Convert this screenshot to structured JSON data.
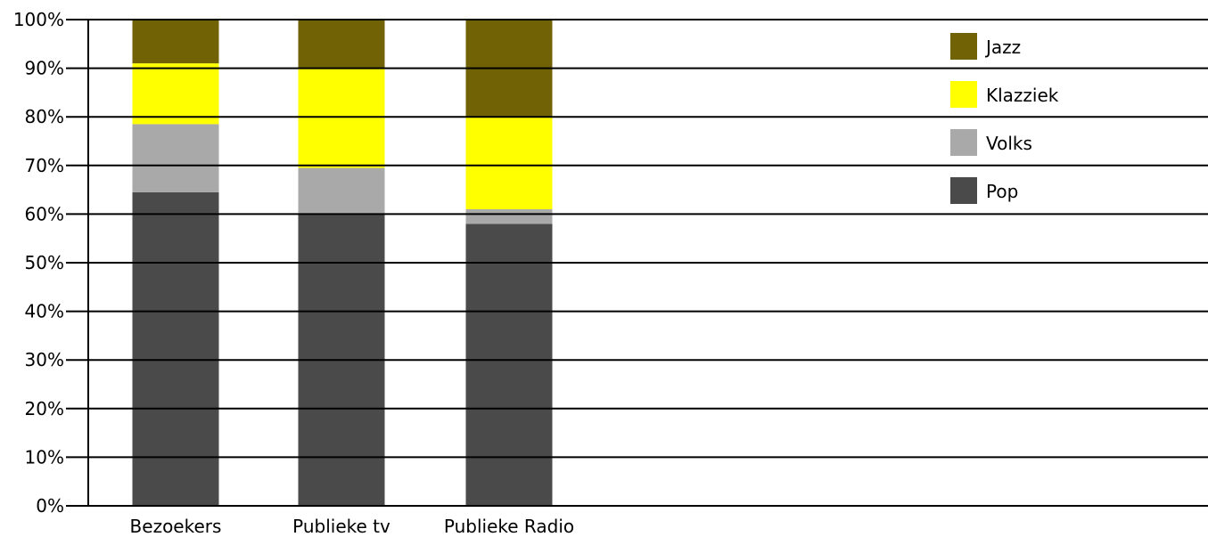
{
  "chart_data": {
    "type": "bar",
    "stacked": true,
    "title": "",
    "xlabel": "",
    "ylabel": "",
    "categories": [
      "Bezoekers",
      "Publieke tv",
      "Publieke Radio"
    ],
    "ylim": [
      0,
      100
    ],
    "yticks": [
      0,
      10,
      20,
      30,
      40,
      50,
      60,
      70,
      80,
      90,
      100
    ],
    "ytick_labels": [
      "0%",
      "10%",
      "20%",
      "30%",
      "40%",
      "50%",
      "60%",
      "70%",
      "80%",
      "90%",
      "100%"
    ],
    "grid": true,
    "legend_position": "top-right",
    "series": [
      {
        "name": "Pop",
        "color": "#4a4a4a",
        "values": [
          64.5,
          60,
          58
        ]
      },
      {
        "name": "Volks",
        "color": "#a9a9a9",
        "values": [
          14,
          9.5,
          3
        ]
      },
      {
        "name": "Klazziek",
        "color": "#ffff00",
        "values": [
          12.5,
          20.5,
          19
        ]
      },
      {
        "name": "Jazz",
        "color": "#716205",
        "values": [
          9,
          10,
          20
        ]
      }
    ],
    "legend_order": [
      "Jazz",
      "Klazziek",
      "Volks",
      "Pop"
    ]
  }
}
